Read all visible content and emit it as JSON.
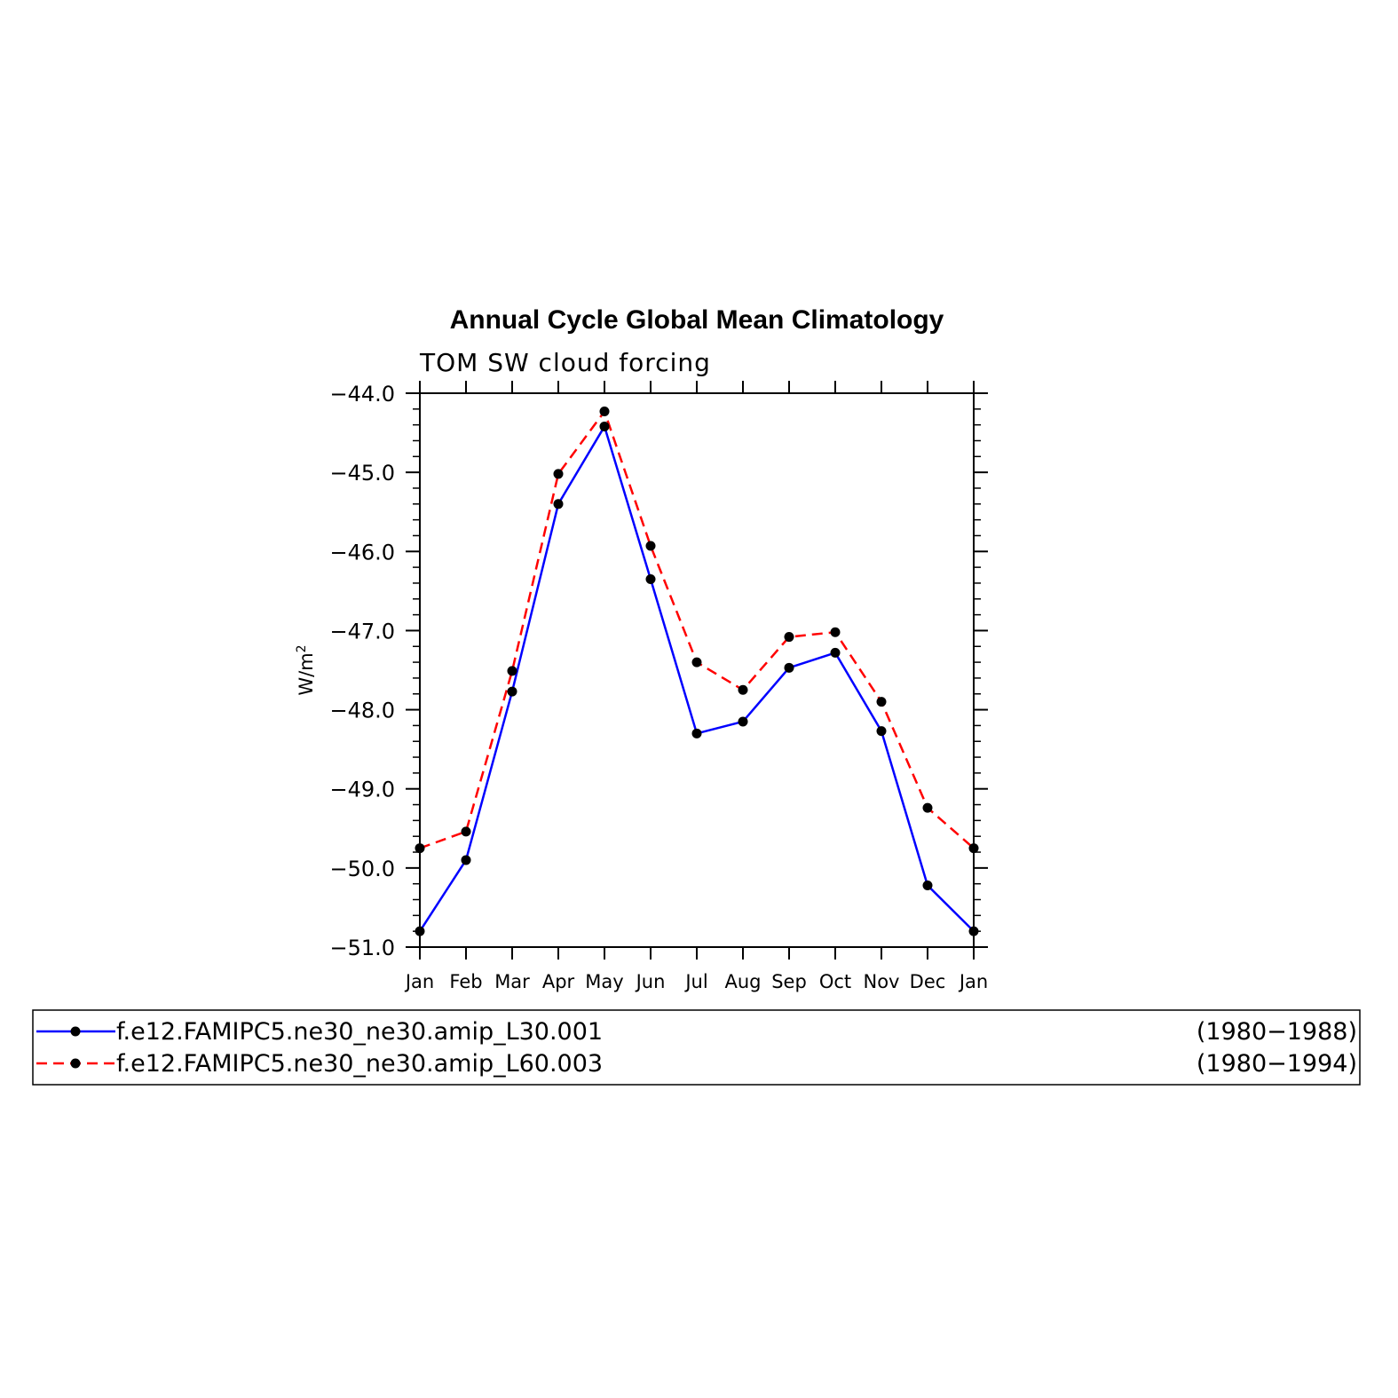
{
  "chart_data": {
    "type": "line",
    "title": "Annual Cycle Global Mean Climatology",
    "subtitle": "TOM SW cloud forcing",
    "ylabel_base": "W/m",
    "ylabel_sup": "2",
    "xlabel": "",
    "categories": [
      "Jan",
      "Feb",
      "Mar",
      "Apr",
      "May",
      "Jun",
      "Jul",
      "Aug",
      "Sep",
      "Oct",
      "Nov",
      "Dec",
      "Jan"
    ],
    "ylim": [
      -51.0,
      -44.0
    ],
    "yticks": [
      -51.0,
      -50.0,
      -49.0,
      -48.0,
      -47.0,
      -46.0,
      -45.0,
      -44.0
    ],
    "ytick_labels": [
      "−51.0",
      "−50.0",
      "−49.0",
      "−48.0",
      "−47.0",
      "−46.0",
      "−45.0",
      "−44.0"
    ],
    "grid": false,
    "legend_placement": "below",
    "series": [
      {
        "name": "f.e12.FAMIPC5.ne30_ne30.amip_L30.001",
        "period": "(1980−1988)",
        "color": "#0000ff",
        "dash": "solid",
        "marker_color": "#000000",
        "values": [
          -50.8,
          -49.9,
          -47.77,
          -45.4,
          -44.42,
          -46.35,
          -48.3,
          -48.15,
          -47.47,
          -47.28,
          -48.27,
          -50.22,
          -50.8
        ]
      },
      {
        "name": "f.e12.FAMIPC5.ne30_ne30.amip_L60.003",
        "period": "(1980−1994)",
        "color": "#ff0000",
        "dash": "dashed",
        "marker_color": "#000000",
        "values": [
          -49.75,
          -49.54,
          -47.51,
          -45.02,
          -44.23,
          -45.93,
          -47.4,
          -47.75,
          -47.08,
          -47.02,
          -47.9,
          -49.24,
          -49.75
        ]
      }
    ]
  }
}
